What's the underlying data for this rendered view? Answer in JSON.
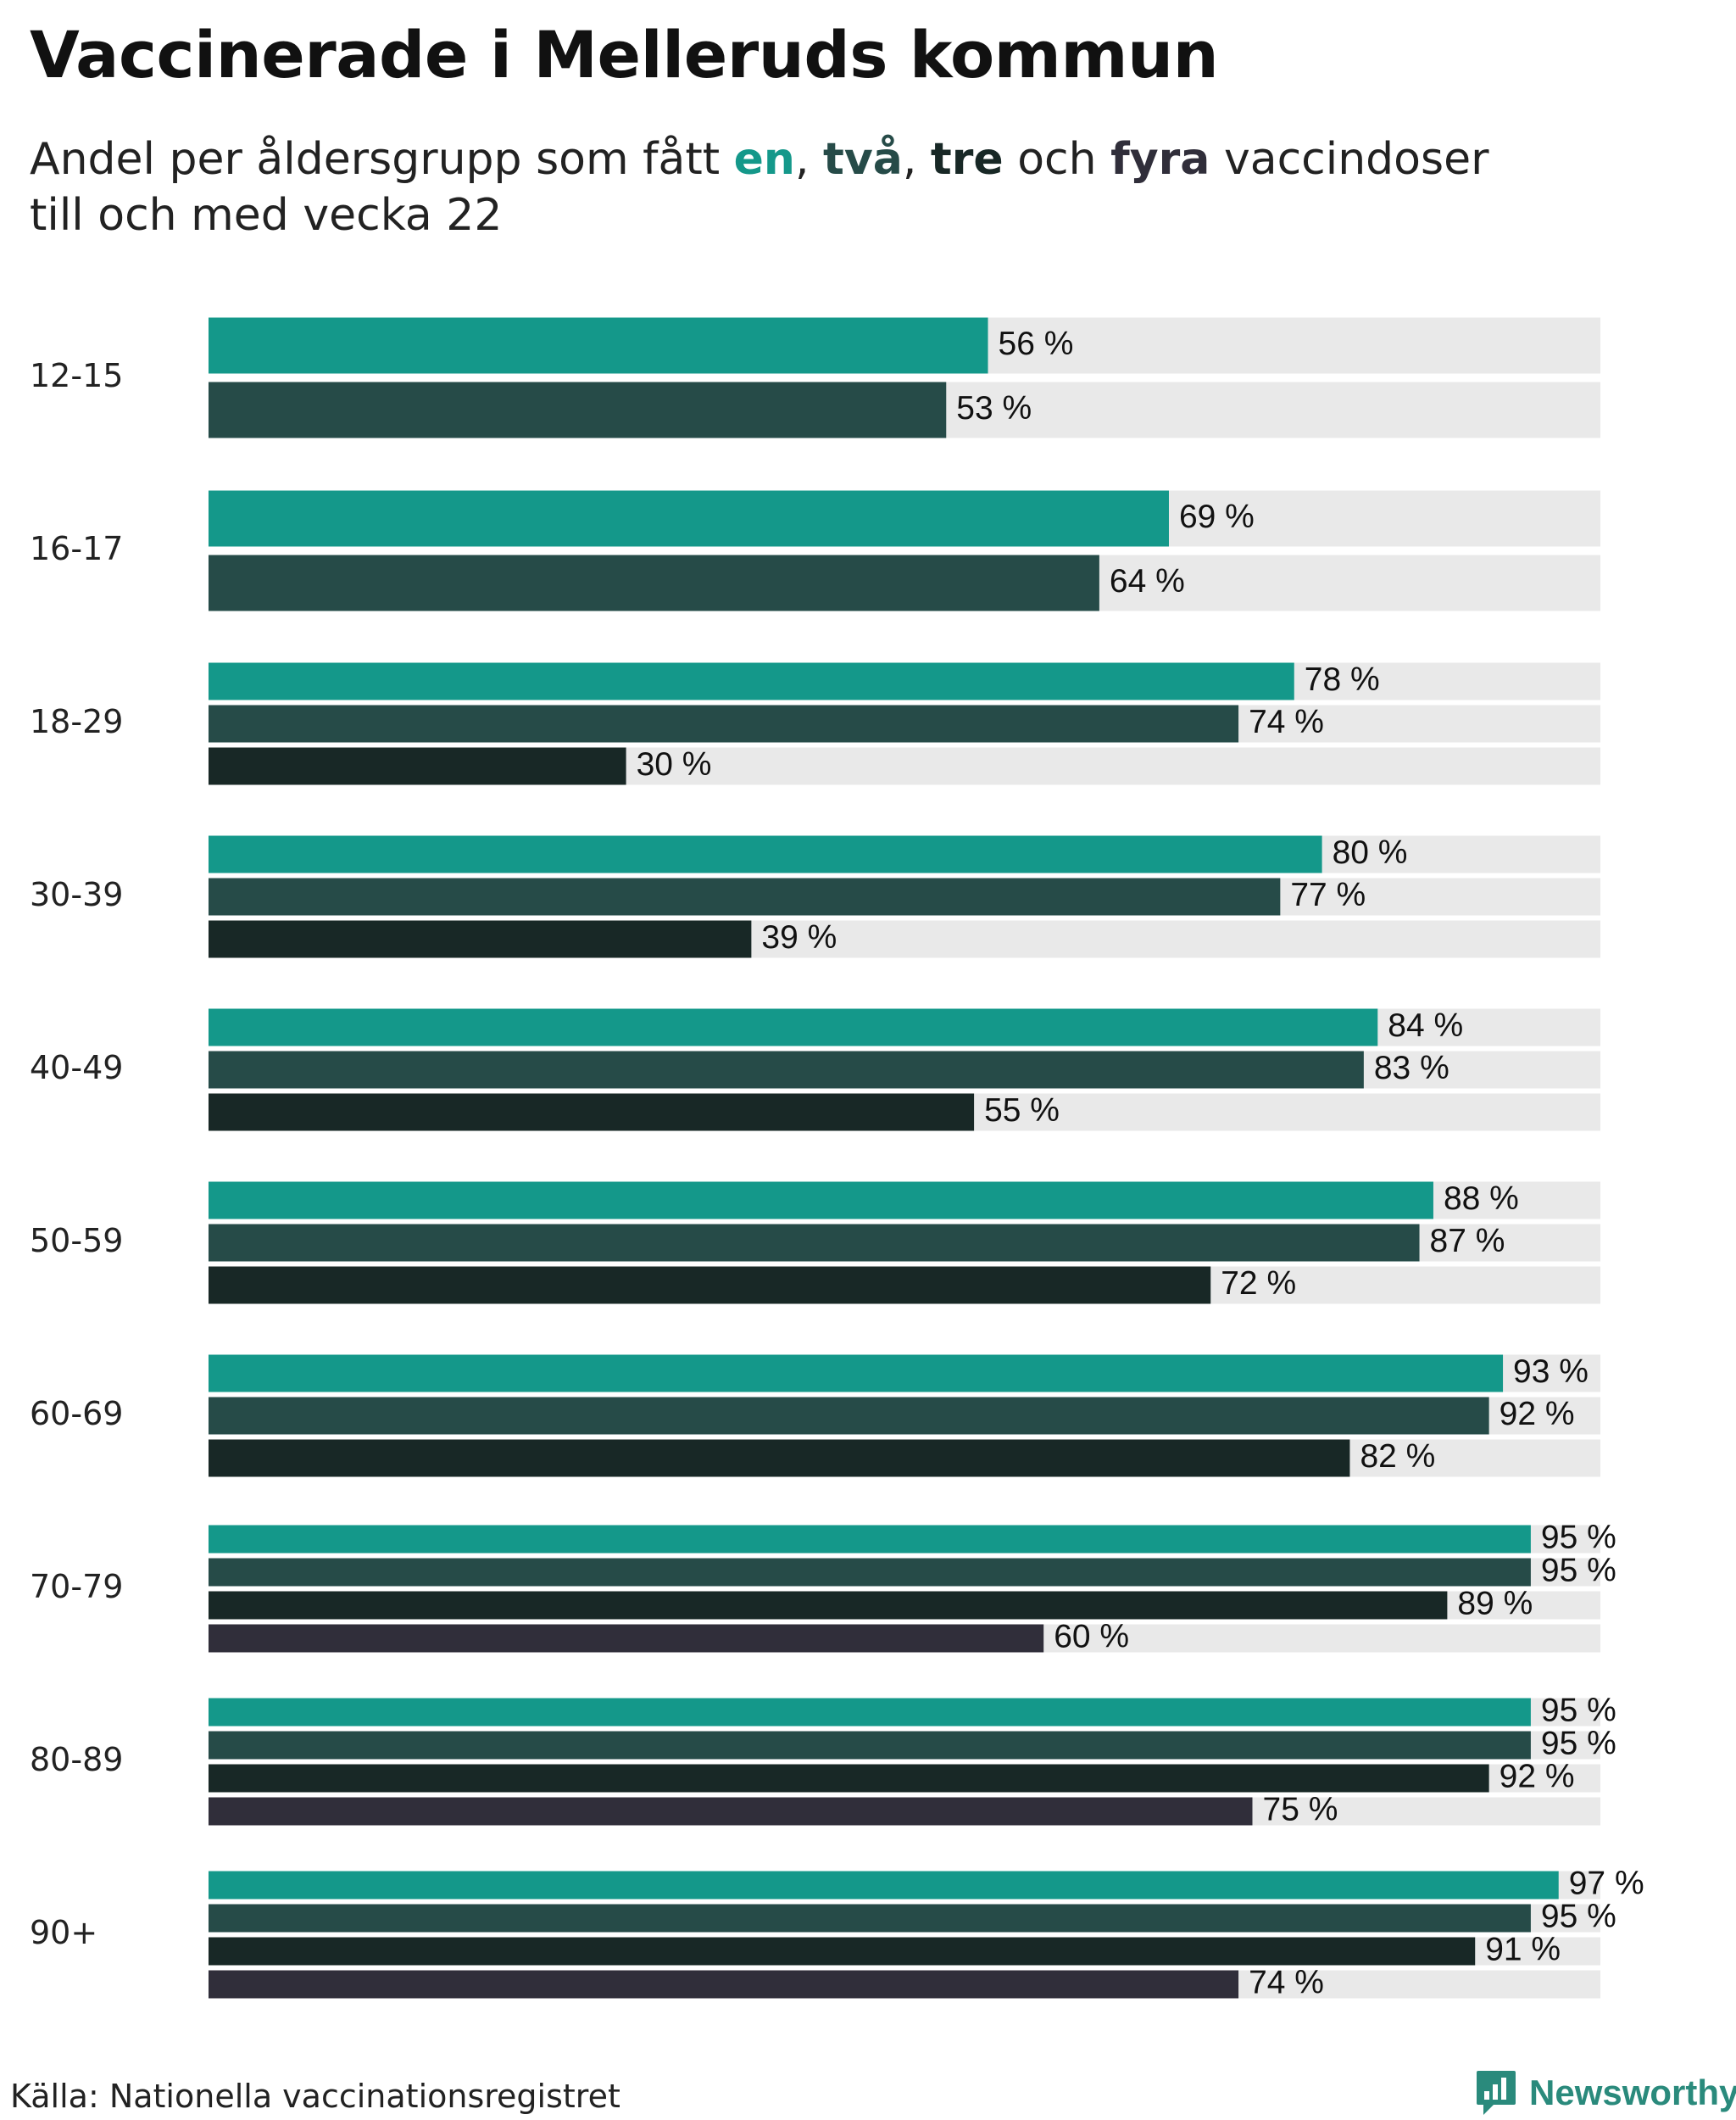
{
  "title": "Vaccinerade i Melleruds kommun",
  "subtitle": {
    "prefix": "Andel per åldersgrupp som fått",
    "w1": "en",
    "sep1": ",",
    "w2": "två",
    "sep2": ",",
    "w3": "tre",
    "mid": "och",
    "w4": "fyra",
    "suffix": "vaccindoser",
    "line2": "till och med vecka 22"
  },
  "colors": {
    "dose1": "#14988a",
    "dose2": "#264b48",
    "dose3": "#182826",
    "dose4": "#302e3a",
    "track": "#e9e9e9"
  },
  "chart_data": {
    "type": "bar",
    "orientation": "horizontal",
    "xlim": [
      0,
      100
    ],
    "unit": "%",
    "series": [
      {
        "name": "en",
        "key": "dose1"
      },
      {
        "name": "två",
        "key": "dose2"
      },
      {
        "name": "tre",
        "key": "dose3"
      },
      {
        "name": "fyra",
        "key": "dose4"
      }
    ],
    "groups": [
      {
        "label": "12-15",
        "values": [
          56,
          53
        ]
      },
      {
        "label": "16-17",
        "values": [
          69,
          64
        ]
      },
      {
        "label": "18-29",
        "values": [
          78,
          74,
          30
        ]
      },
      {
        "label": "30-39",
        "values": [
          80,
          77,
          39
        ]
      },
      {
        "label": "40-49",
        "values": [
          84,
          83,
          55
        ]
      },
      {
        "label": "50-59",
        "values": [
          88,
          87,
          72
        ]
      },
      {
        "label": "60-69",
        "values": [
          93,
          92,
          82
        ]
      },
      {
        "label": "70-79",
        "values": [
          95,
          95,
          89,
          60
        ]
      },
      {
        "label": "80-89",
        "values": [
          95,
          95,
          92,
          75
        ]
      },
      {
        "label": "90+",
        "values": [
          97,
          95,
          91,
          74
        ]
      }
    ]
  },
  "source": "Källa: Nationella vaccinationsregistret",
  "brand": {
    "name": "Newsworthy"
  }
}
